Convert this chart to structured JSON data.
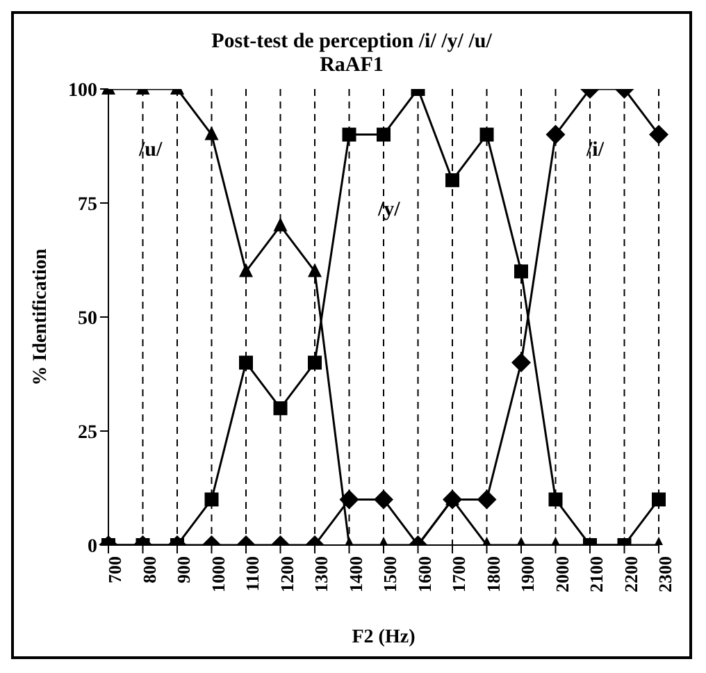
{
  "chart_data": {
    "type": "line",
    "title": "Post-test de perception /i/ /y/ /u/",
    "subtitle": "RaAF1",
    "xlabel": "F2 (Hz)",
    "ylabel": "% Identification",
    "categories": [
      "700",
      "800",
      "900",
      "1000",
      "1100",
      "1200",
      "1300",
      "1400",
      "1500",
      "1600",
      "1700",
      "1800",
      "1900",
      "2000",
      "2100",
      "2200",
      "2300"
    ],
    "series": [
      {
        "color": "#000000",
        "marker": "triangle",
        "values": [
          100,
          100,
          100,
          90,
          60,
          70,
          60,
          0,
          0,
          0,
          10,
          0,
          0,
          0,
          0,
          0,
          0
        ]
      },
      {
        "color": "#000000",
        "marker": "square",
        "values": [
          0,
          0,
          0,
          10,
          40,
          30,
          40,
          90,
          90,
          100,
          80,
          90,
          60,
          10,
          0,
          0,
          10
        ]
      },
      {
        "color": "#000000",
        "marker": "diamond",
        "values": [
          0,
          0,
          0,
          0,
          0,
          0,
          0,
          10,
          10,
          0,
          10,
          10,
          40,
          90,
          100,
          100,
          90
        ]
      }
    ],
    "annotations": [
      "/u/",
      "/y/",
      "/i/"
    ],
    "ylim": [
      0,
      100
    ],
    "yticks": [
      0,
      25,
      50,
      75,
      100
    ],
    "grid": "x",
    "legend": false,
    "line_style": "solid"
  }
}
